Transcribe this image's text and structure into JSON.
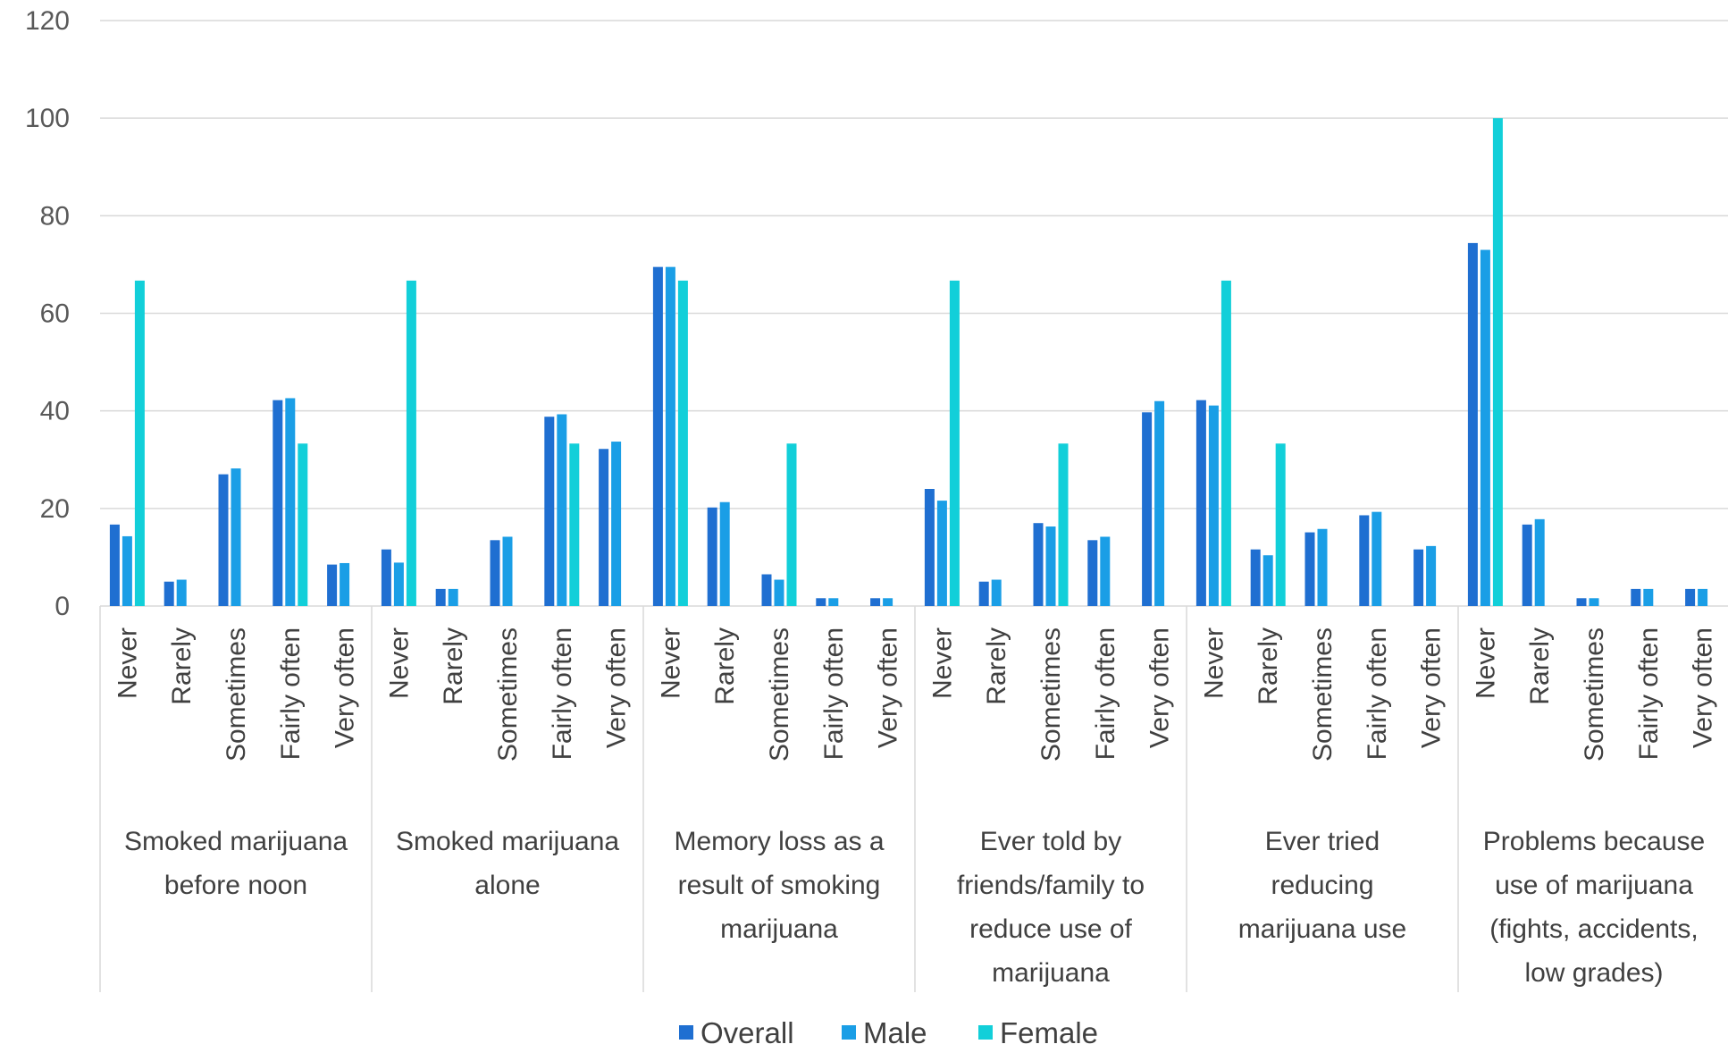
{
  "chart_data": {
    "type": "bar",
    "title": "",
    "xlabel": "",
    "ylabel": "",
    "ylim": [
      0,
      120
    ],
    "yticks": [
      0,
      20,
      40,
      60,
      80,
      100,
      120
    ],
    "grid": true,
    "legend_position": "bottom",
    "sub_categories": [
      "Never",
      "Rarely",
      "Sometimes",
      "Fairly often",
      "Very often"
    ],
    "groups": [
      {
        "label_lines": [
          "Smoked marijuana",
          "before noon"
        ],
        "values": {
          "Overall": [
            16.7,
            5.0,
            27.0,
            42.2,
            8.5
          ],
          "Male": [
            14.3,
            5.4,
            28.2,
            42.6,
            8.8
          ],
          "Female": [
            66.7,
            0,
            0,
            33.3,
            0
          ]
        }
      },
      {
        "label_lines": [
          "Smoked marijuana",
          "alone"
        ],
        "values": {
          "Overall": [
            11.6,
            3.5,
            13.5,
            38.8,
            32.2
          ],
          "Male": [
            8.9,
            3.5,
            14.2,
            39.3,
            33.7
          ],
          "Female": [
            66.7,
            0,
            0,
            33.3,
            0
          ]
        }
      },
      {
        "label_lines": [
          "Memory loss as a",
          "result of smoking",
          "marijuana"
        ],
        "values": {
          "Overall": [
            69.5,
            20.2,
            6.5,
            1.6,
            1.6
          ],
          "Male": [
            69.5,
            21.3,
            5.4,
            1.6,
            1.6
          ],
          "Female": [
            66.7,
            0,
            33.3,
            0,
            0
          ]
        }
      },
      {
        "label_lines": [
          "Ever told by",
          "friends/family to",
          "reduce use of",
          "marijuana"
        ],
        "values": {
          "Overall": [
            24.0,
            5.0,
            17.0,
            13.5,
            39.7
          ],
          "Male": [
            21.6,
            5.4,
            16.3,
            14.2,
            42.0
          ],
          "Female": [
            66.7,
            0,
            33.3,
            0,
            0
          ]
        }
      },
      {
        "label_lines": [
          "Ever tried",
          "reducing",
          "marijuana use"
        ],
        "values": {
          "Overall": [
            42.2,
            11.6,
            15.1,
            18.6,
            11.6
          ],
          "Male": [
            41.1,
            10.4,
            15.8,
            19.3,
            12.3
          ],
          "Female": [
            66.7,
            33.3,
            0,
            0,
            0
          ]
        }
      },
      {
        "label_lines": [
          "Problems because",
          "use of marijuana",
          "(fights, accidents,",
          "low grades)"
        ],
        "values": {
          "Overall": [
            74.4,
            16.7,
            1.6,
            3.5,
            3.5
          ],
          "Male": [
            73.0,
            17.8,
            1.6,
            3.5,
            3.5
          ],
          "Female": [
            100,
            0,
            0,
            0,
            0
          ]
        }
      }
    ],
    "series": [
      {
        "name": "Overall",
        "color": "#1f6fd1"
      },
      {
        "name": "Male",
        "color": "#1a9ee6"
      },
      {
        "name": "Female",
        "color": "#12cfd9"
      }
    ]
  }
}
